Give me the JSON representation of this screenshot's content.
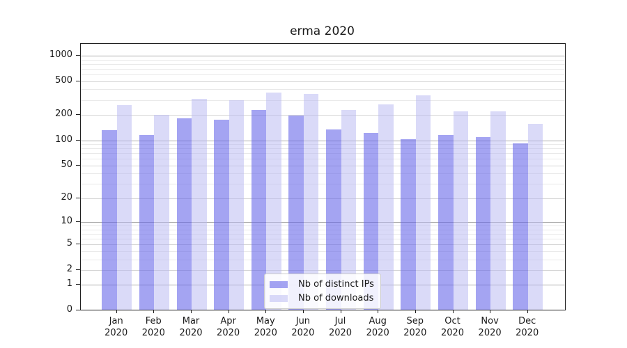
{
  "figure": {
    "title": "erma 2020"
  },
  "chart_data": {
    "type": "bar",
    "title": "erma 2020",
    "categories": [
      "Jan 2020",
      "Feb 2020",
      "Mar 2020",
      "Apr 2020",
      "May 2020",
      "Jun 2020",
      "Jul 2020",
      "Aug 2020",
      "Sep 2020",
      "Oct 2020",
      "Nov 2020",
      "Dec 2020"
    ],
    "series": [
      {
        "name": "Nb of distinct IPs",
        "color": "#6262e8",
        "fill_opacity": 0.58,
        "values": [
          133,
          116,
          182,
          176,
          229,
          198,
          135,
          122,
          103,
          115,
          109,
          91
        ]
      },
      {
        "name": "Nb of downloads",
        "color": "#b9b9f2",
        "fill_opacity": 0.52,
        "values": [
          262,
          202,
          310,
          297,
          370,
          354,
          227,
          265,
          340,
          219,
          221,
          156
        ]
      }
    ],
    "yscale": "log10(value+1)",
    "yticks": [
      0,
      1,
      2,
      5,
      10,
      20,
      50,
      100,
      200,
      500,
      1000
    ],
    "ytick_labels": [
      "0",
      "1",
      "2",
      "5",
      "10",
      "20",
      "50",
      "100",
      "200",
      "500",
      "1000"
    ],
    "ylim": [
      0,
      1350
    ],
    "grid": "horizontal",
    "legend": {
      "position": "lower-center",
      "entries": [
        "Nb of distinct IPs",
        "Nb of downloads"
      ]
    }
  },
  "colors": {
    "background": "#ffffff",
    "bar_distinct_ips": "#a4a4f1",
    "bar_downloads": "#dbdbf9",
    "grid_major": "#ababab",
    "grid_labeled_minor": "#d4d4d4",
    "grid_minor": "#e9e9e9",
    "axis": "#1f1f1f",
    "text": "#1a1a1a",
    "legend_border": "#cccccc"
  }
}
